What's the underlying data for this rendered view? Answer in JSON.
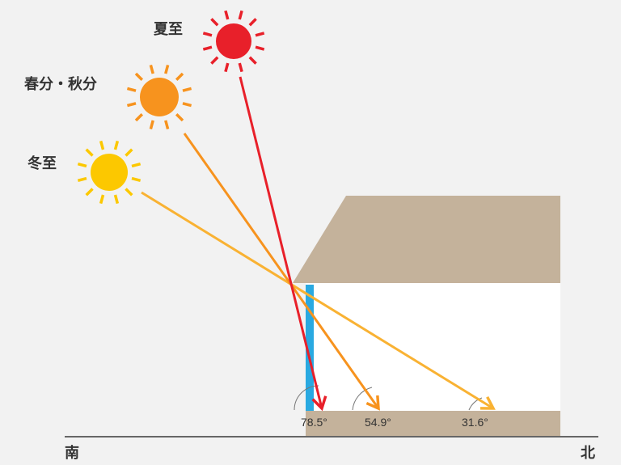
{
  "labels": {
    "summer": "夏至",
    "equinox": "春分・秋分",
    "winter": "冬至",
    "south": "南",
    "north": "北"
  },
  "angles": {
    "summer": "78.5°",
    "equinox": "54.9°",
    "winter": "31.6°"
  },
  "colors": {
    "summer": "#e8202a",
    "equinox": "#f7931e",
    "winter": "#fcc800",
    "winter_ray": "#f9b233",
    "house": "#c4b29b",
    "window": "#29a9e1",
    "ground": "#666666"
  }
}
